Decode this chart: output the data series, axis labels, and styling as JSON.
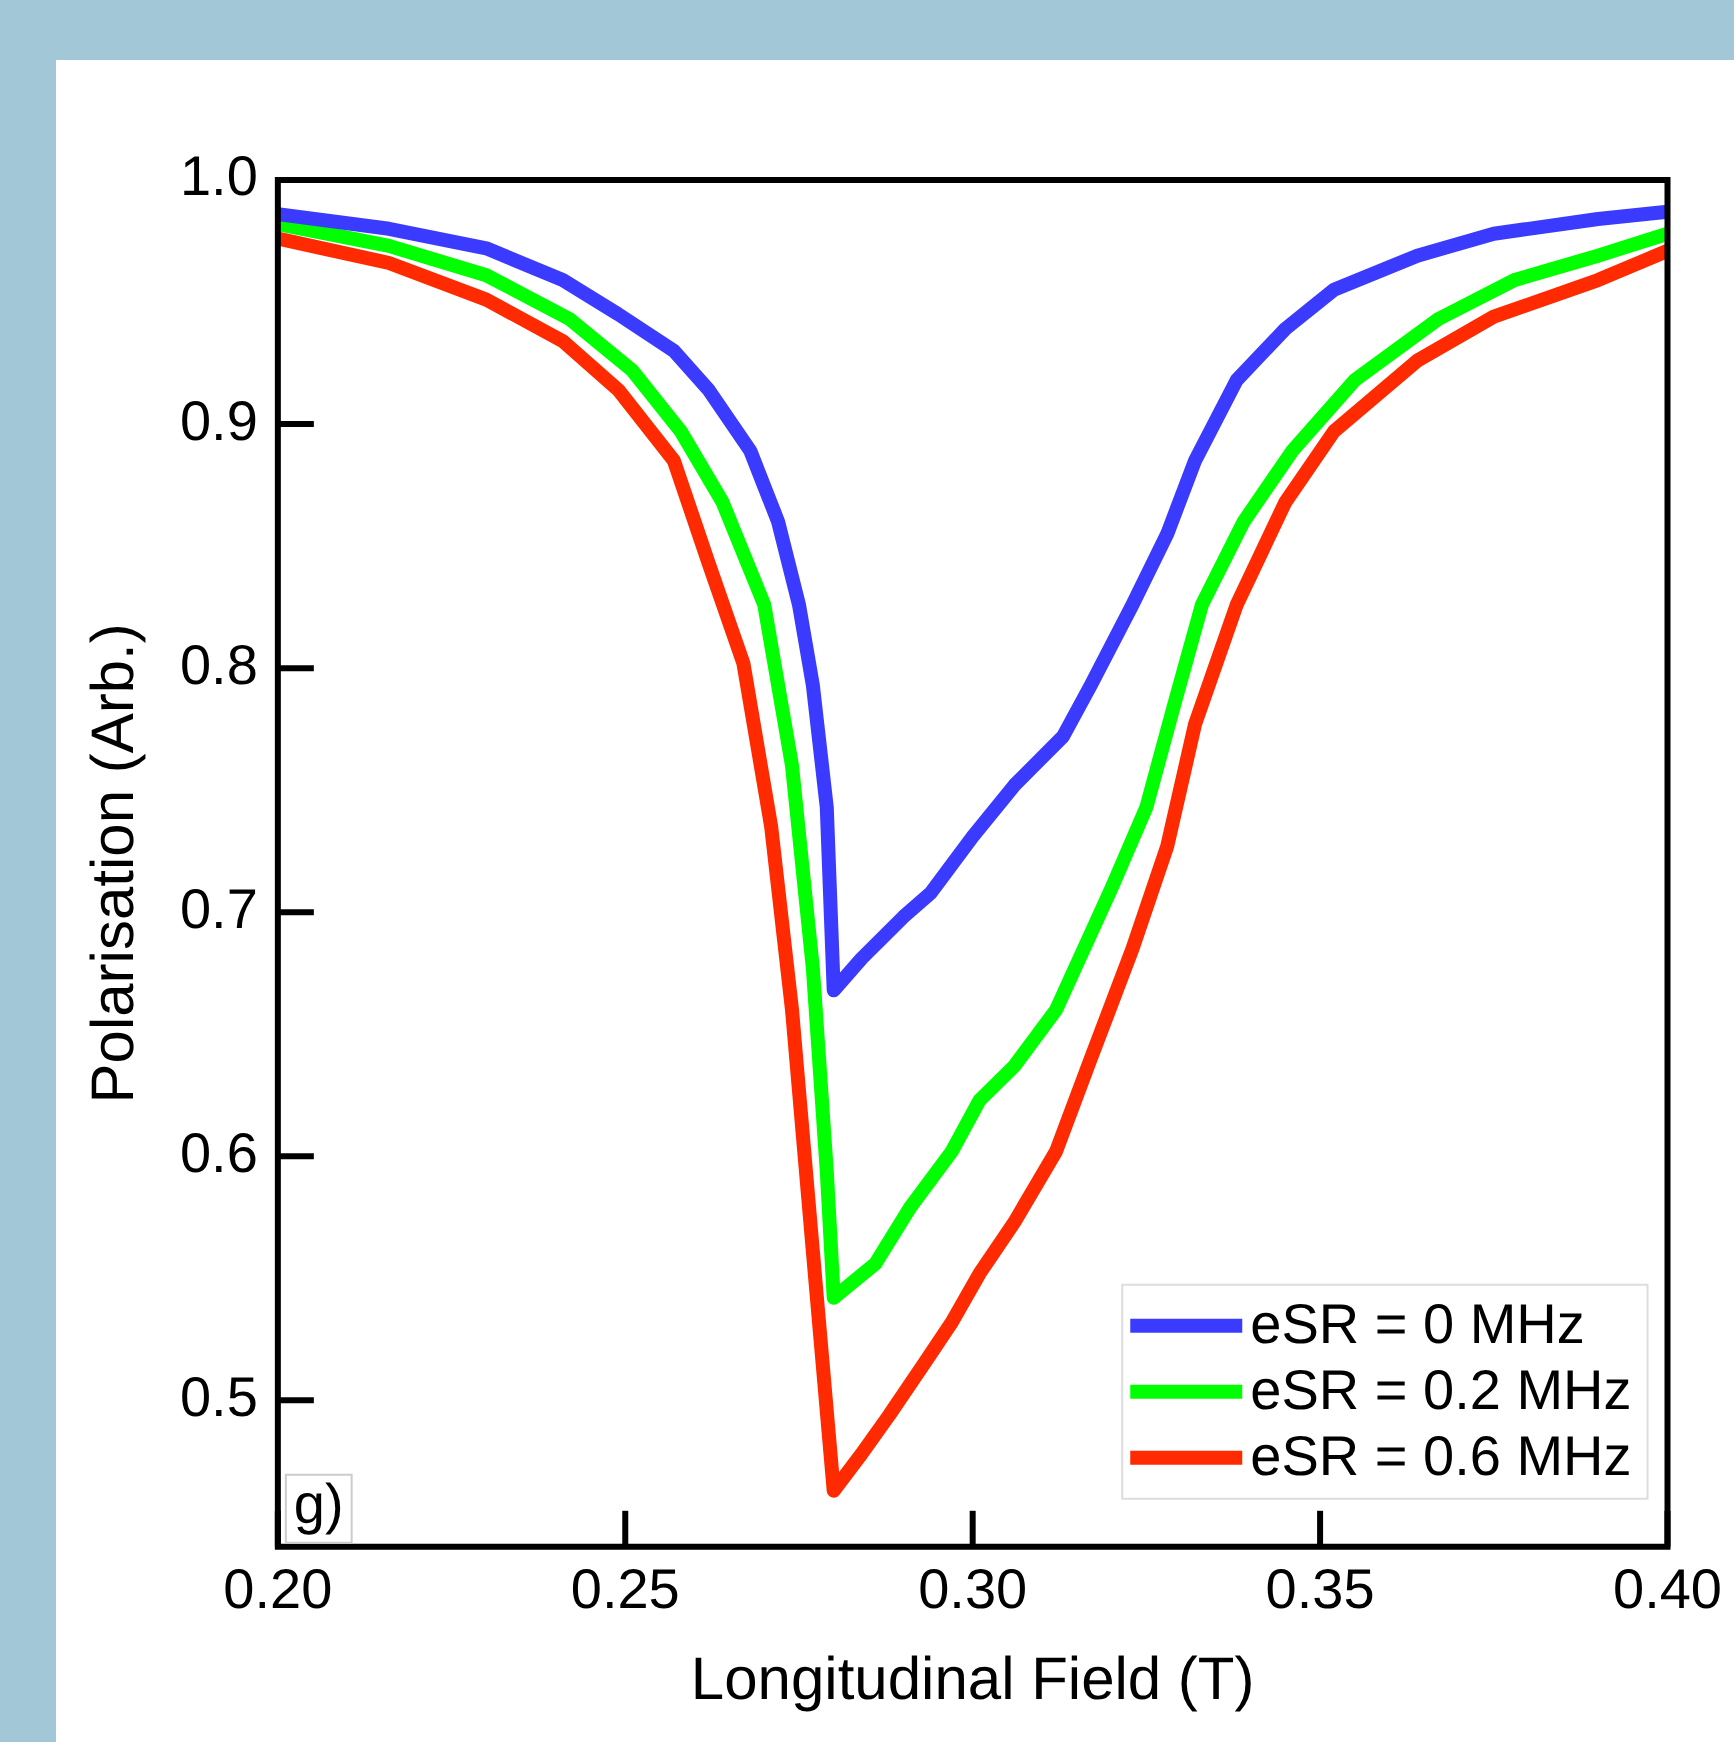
{
  "chart_data": {
    "type": "line",
    "xlabel": "Longitudinal Field (T)",
    "ylabel": "Polarisation (Arb.)",
    "xlim": [
      0.2,
      0.4
    ],
    "xticks": [
      {
        "value": 0.2,
        "label": "0.20"
      },
      {
        "value": 0.25,
        "label": "0.25"
      },
      {
        "value": 0.3,
        "label": "0.30"
      },
      {
        "value": 0.35,
        "label": "0.35"
      },
      {
        "value": 0.4,
        "label": "0.40"
      }
    ],
    "ylim": [
      0.44,
      1.0
    ],
    "yticks": [
      0.5,
      0.6,
      0.7,
      0.8,
      0.9,
      {
        "value": 1.0,
        "label": "1.0"
      }
    ],
    "grid": false,
    "legend": "bottom right",
    "marker": "none",
    "line_style": "solid",
    "annotations": [
      "g)"
    ],
    "series": [
      {
        "name": "eSR = 0 MHz",
        "color": "#3b3bff",
        "x": [
          0.2,
          0.216,
          0.23,
          0.241,
          0.249,
          0.257,
          0.262,
          0.268,
          0.272,
          0.275,
          0.277,
          0.279,
          0.28,
          0.284,
          0.29,
          0.294,
          0.3,
          0.306,
          0.313,
          0.317,
          0.323,
          0.328,
          0.332,
          0.338,
          0.345,
          0.352,
          0.364,
          0.375,
          0.39,
          0.4
        ],
        "values": [
          0.986,
          0.98,
          0.972,
          0.959,
          0.945,
          0.93,
          0.914,
          0.889,
          0.86,
          0.826,
          0.793,
          0.743,
          0.668,
          0.681,
          0.698,
          0.708,
          0.731,
          0.752,
          0.772,
          0.793,
          0.826,
          0.855,
          0.885,
          0.918,
          0.939,
          0.955,
          0.969,
          0.978,
          0.984,
          0.987
        ]
      },
      {
        "name": "eSR = 0.2 MHz",
        "color": "#00ff00",
        "x": [
          0.2,
          0.216,
          0.23,
          0.242,
          0.251,
          0.258,
          0.264,
          0.27,
          0.274,
          0.277,
          0.279,
          0.28,
          0.286,
          0.291,
          0.297,
          0.301,
          0.306,
          0.312,
          0.316,
          0.32,
          0.325,
          0.329,
          0.333,
          0.339,
          0.346,
          0.355,
          0.367,
          0.378,
          0.39,
          0.4
        ],
        "values": [
          0.982,
          0.973,
          0.961,
          0.943,
          0.922,
          0.897,
          0.868,
          0.826,
          0.76,
          0.677,
          0.594,
          0.542,
          0.556,
          0.579,
          0.602,
          0.623,
          0.637,
          0.66,
          0.685,
          0.71,
          0.743,
          0.785,
          0.826,
          0.86,
          0.889,
          0.918,
          0.943,
          0.959,
          0.969,
          0.978
        ]
      },
      {
        "name": "eSR = 0.6 MHz",
        "color": "#ff2a00",
        "x": [
          0.2,
          0.216,
          0.23,
          0.241,
          0.249,
          0.257,
          0.262,
          0.267,
          0.271,
          0.274,
          0.277,
          0.28,
          0.284,
          0.288,
          0.293,
          0.297,
          0.301,
          0.306,
          0.312,
          0.317,
          0.323,
          0.328,
          0.332,
          0.338,
          0.345,
          0.352,
          0.364,
          0.375,
          0.39,
          0.4
        ],
        "values": [
          0.976,
          0.966,
          0.951,
          0.934,
          0.914,
          0.885,
          0.843,
          0.802,
          0.735,
          0.66,
          0.561,
          0.463,
          0.478,
          0.494,
          0.515,
          0.532,
          0.552,
          0.573,
          0.602,
          0.64,
          0.685,
          0.727,
          0.777,
          0.826,
          0.868,
          0.897,
          0.926,
          0.944,
          0.959,
          0.971
        ]
      }
    ]
  }
}
